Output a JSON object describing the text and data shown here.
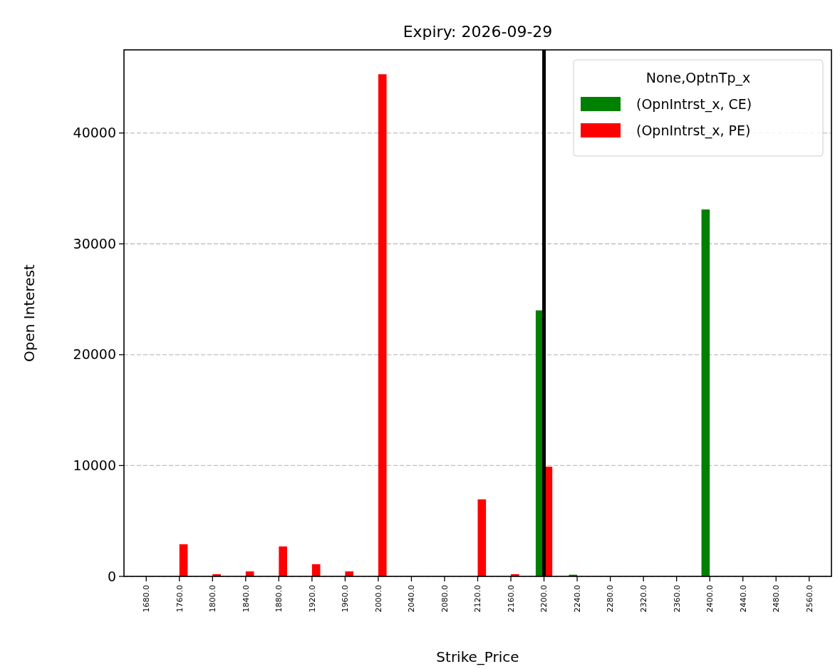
{
  "chart_data": {
    "type": "bar",
    "title": "Expiry: 2026-09-29",
    "xlabel": "Strike_Price",
    "ylabel": "Open Interest",
    "legend_title": "None,OptnTp_x",
    "categories": [
      "1680.0",
      "1760.0",
      "1800.0",
      "1840.0",
      "1880.0",
      "1920.0",
      "1960.0",
      "2000.0",
      "2040.0",
      "2080.0",
      "2120.0",
      "2160.0",
      "2200.0",
      "2240.0",
      "2280.0",
      "2320.0",
      "2360.0",
      "2400.0",
      "2440.0",
      "2480.0",
      "2560.0"
    ],
    "series": [
      {
        "name": "(OpnIntrst_x, CE)",
        "color": "#008000",
        "values": [
          0,
          0,
          0,
          0,
          0,
          0,
          0,
          0,
          0,
          0,
          0,
          0,
          24000,
          150,
          0,
          0,
          0,
          33100,
          0,
          0,
          0
        ]
      },
      {
        "name": "(OpnIntrst_x, PE)",
        "color": "#ff0000",
        "values": [
          0,
          2900,
          200,
          450,
          2700,
          1100,
          450,
          45300,
          0,
          0,
          6950,
          200,
          9900,
          0,
          0,
          0,
          0,
          0,
          0,
          0,
          0
        ]
      }
    ],
    "ylim": [
      0,
      47500
    ],
    "yticks": [
      0,
      10000,
      20000,
      30000,
      40000
    ],
    "grid": "y",
    "legend": "top right",
    "ref_lines": [
      {
        "axis": "x",
        "value": "2200.0",
        "color": "#000000"
      }
    ]
  }
}
